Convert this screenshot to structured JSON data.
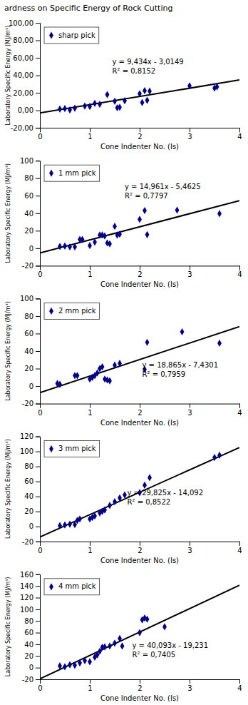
{
  "chart_data": [
    {
      "type": "scatter",
      "title": "ardness on Specific Energy of Rock Cutting",
      "x_label": "Cone Indenter No. (Is)",
      "y_label": "Laboratory Specific Energy (MJ/m³)",
      "xlim": [
        0,
        4
      ],
      "xticks": [
        0,
        1,
        2,
        3,
        4
      ],
      "ylim": [
        -20,
        100
      ],
      "yticks": [
        {
          "value": -20,
          "label": "-20,00"
        },
        {
          "value": 0,
          "label": "0,00"
        },
        {
          "value": 20,
          "label": "20,00"
        },
        {
          "value": 40,
          "label": "40,00"
        },
        {
          "value": 60,
          "label": "60,00"
        },
        {
          "value": 80,
          "label": "80,00"
        },
        {
          "value": 100,
          "label": "100,00"
        }
      ],
      "grid": false,
      "legend": "upper left",
      "series": [
        {
          "name": "sharp pick",
          "type": "scatter",
          "marker": "diamond",
          "color": "#00008B",
          "x": [
            0.4,
            0.5,
            0.6,
            0.7,
            0.9,
            1.0,
            1.1,
            1.2,
            1.35,
            1.5,
            1.55,
            1.6,
            1.7,
            2.0,
            2.05,
            2.1,
            2.15,
            2.2,
            3.0,
            3.5,
            3.55
          ],
          "values": [
            1.5,
            2.0,
            0.5,
            2.5,
            5.0,
            4.5,
            8.0,
            7.0,
            18.0,
            10.5,
            3.0,
            3.5,
            11.0,
            19.0,
            9.0,
            22.5,
            11.5,
            22.0,
            28.0,
            25.5,
            27.0
          ]
        },
        {
          "type": "line",
          "color": "#000000",
          "x": [
            0,
            4
          ],
          "values": [
            -3.0149,
            34.7211
          ]
        }
      ],
      "annotations": [
        {
          "text": "y = 9,434x - 3,0149",
          "x": 1.45,
          "y": 50
        },
        {
          "text": "R² = 0,8152",
          "x": 1.45,
          "y": 50
        }
      ]
    },
    {
      "type": "scatter",
      "x_label": "Cone Indenter No. (Is)",
      "y_label": "Laboratory Specific Energy (MJ/m³)",
      "xlim": [
        0,
        4
      ],
      "xticks": [
        0,
        1,
        2,
        3,
        4
      ],
      "ylim": [
        -20,
        100
      ],
      "yticks": [
        -20,
        0,
        20,
        40,
        60,
        80,
        100
      ],
      "grid": false,
      "legend": "upper left",
      "series": [
        {
          "name": "1 mm pick",
          "type": "scatter",
          "marker": "diamond",
          "color": "#00008B",
          "x": [
            0.4,
            0.5,
            0.6,
            0.7,
            0.8,
            0.85,
            1.0,
            1.1,
            1.2,
            1.25,
            1.3,
            1.35,
            1.4,
            1.5,
            1.55,
            1.6,
            2.0,
            2.1,
            2.15,
            2.75,
            3.6
          ],
          "values": [
            2.0,
            2.5,
            1.5,
            1.5,
            10.0,
            10.0,
            3.0,
            7.0,
            15.0,
            15.0,
            14.0,
            6.0,
            5.0,
            25.0,
            15.0,
            16.0,
            33.0,
            43.0,
            15.5,
            43.5,
            39.5
          ]
        },
        {
          "type": "line",
          "color": "#000000",
          "x": [
            0,
            4
          ],
          "values": [
            -5.4625,
            54.3815
          ]
        }
      ],
      "annotations": [
        {
          "text": "y = 14,961x - 5,4625",
          "x": 1.7,
          "y": 65
        },
        {
          "text": "R² = 0,7797",
          "x": 1.7,
          "y": 65
        }
      ]
    },
    {
      "type": "scatter",
      "x_label": "Cone Indenter No. (Is)",
      "y_label": "Laboratory Specific Energy (MJ/m³)",
      "xlim": [
        0,
        4
      ],
      "xticks": [
        0,
        1,
        2,
        3,
        4
      ],
      "ylim": [
        -20,
        100
      ],
      "yticks": [
        -20,
        0,
        20,
        40,
        60,
        80,
        100
      ],
      "grid": false,
      "legend": "upper left",
      "series": [
        {
          "name": "2 mm pick",
          "type": "scatter",
          "marker": "diamond",
          "color": "#00008B",
          "x": [
            0.35,
            0.4,
            0.7,
            0.75,
            1.0,
            1.05,
            1.1,
            1.15,
            1.2,
            1.25,
            1.3,
            1.35,
            1.4,
            1.5,
            1.6,
            2.1,
            2.15,
            2.85,
            3.6
          ],
          "values": [
            3.0,
            2.0,
            12.0,
            12.0,
            8.0,
            10.0,
            12.0,
            15.0,
            20.0,
            22.0,
            8.0,
            7.0,
            6.0,
            24.0,
            26.0,
            19.0,
            50.0,
            62.0,
            49.0
          ]
        },
        {
          "type": "line",
          "color": "#000000",
          "x": [
            0,
            4
          ],
          "values": [
            -7.4301,
            68.0299
          ]
        }
      ],
      "annotations": [
        {
          "text": "y = 18,865x - 7,4301",
          "x": 2.05,
          "y": 18
        },
        {
          "text": "R² = 0,7959",
          "x": 2.05,
          "y": 18
        }
      ]
    },
    {
      "type": "scatter",
      "x_label": "Cone Indenter No. (Is)",
      "y_label": "Laboratory Specific Energy (MJ/m³)",
      "xlim": [
        0,
        4
      ],
      "xticks": [
        0,
        1,
        2,
        3,
        4
      ],
      "ylim": [
        -20,
        120
      ],
      "yticks": [
        -20,
        0,
        20,
        40,
        60,
        80,
        100,
        120
      ],
      "grid": false,
      "legend": "upper left",
      "series": [
        {
          "name": "3 mm pick",
          "type": "scatter",
          "marker": "diamond",
          "color": "#00008B",
          "x": [
            0.4,
            0.5,
            0.6,
            0.7,
            0.75,
            0.8,
            1.0,
            1.05,
            1.1,
            1.2,
            1.25,
            1.3,
            1.4,
            1.5,
            1.6,
            1.7,
            2.0,
            2.1,
            2.2,
            3.5,
            3.6
          ],
          "values": [
            1.0,
            2.0,
            3.0,
            2.5,
            8.0,
            10.0,
            10.0,
            12.0,
            14.0,
            18.0,
            20.0,
            22.0,
            28.0,
            33.0,
            38.0,
            42.0,
            45.0,
            55.0,
            65.0,
            92.0,
            95.0
          ]
        },
        {
          "type": "line",
          "color": "#000000",
          "x": [
            0,
            4
          ],
          "values": [
            -14.092,
            105.208
          ]
        }
      ],
      "annotations": [
        {
          "text": "y = 29,825x - 14,092",
          "x": 1.75,
          "y": 38
        },
        {
          "text": "R² = 0,8522",
          "x": 1.75,
          "y": 38
        }
      ]
    },
    {
      "type": "scatter",
      "x_label": "Cone Indenter No. (Is)",
      "y_label": "Laboratory Specific Energy (MJ/m³)",
      "xlim": [
        0,
        4
      ],
      "xticks": [
        0,
        1,
        2,
        3,
        4
      ],
      "ylim": [
        -20,
        160
      ],
      "yticks": [
        -20,
        0,
        20,
        40,
        60,
        80,
        100,
        120,
        140,
        160
      ],
      "grid": false,
      "legend": "upper left",
      "series": [
        {
          "name": "4 mm pick",
          "type": "scatter",
          "marker": "diamond",
          "color": "#00008B",
          "x": [
            0.4,
            0.5,
            0.6,
            0.7,
            0.8,
            0.9,
            1.0,
            1.1,
            1.15,
            1.2,
            1.25,
            1.3,
            1.4,
            1.5,
            1.6,
            1.65,
            2.0,
            2.05,
            2.1,
            2.15,
            2.5
          ],
          "values": [
            3.0,
            1.5,
            5.0,
            4.0,
            8.0,
            12.0,
            10.0,
            18.0,
            22.0,
            28.0,
            35.0,
            35.5,
            37.0,
            42.0,
            50.0,
            37.0,
            60.0,
            82.0,
            85.0,
            83.0,
            70.0
          ]
        },
        {
          "type": "line",
          "color": "#000000",
          "x": [
            0,
            4
          ],
          "values": [
            -19.231,
            141.141
          ]
        }
      ],
      "annotations": [
        {
          "text": "y = 40,093x - 19,231",
          "x": 1.85,
          "y": 30
        },
        {
          "text": "R² = 0,7405",
          "x": 1.85,
          "y": 30
        }
      ]
    }
  ]
}
